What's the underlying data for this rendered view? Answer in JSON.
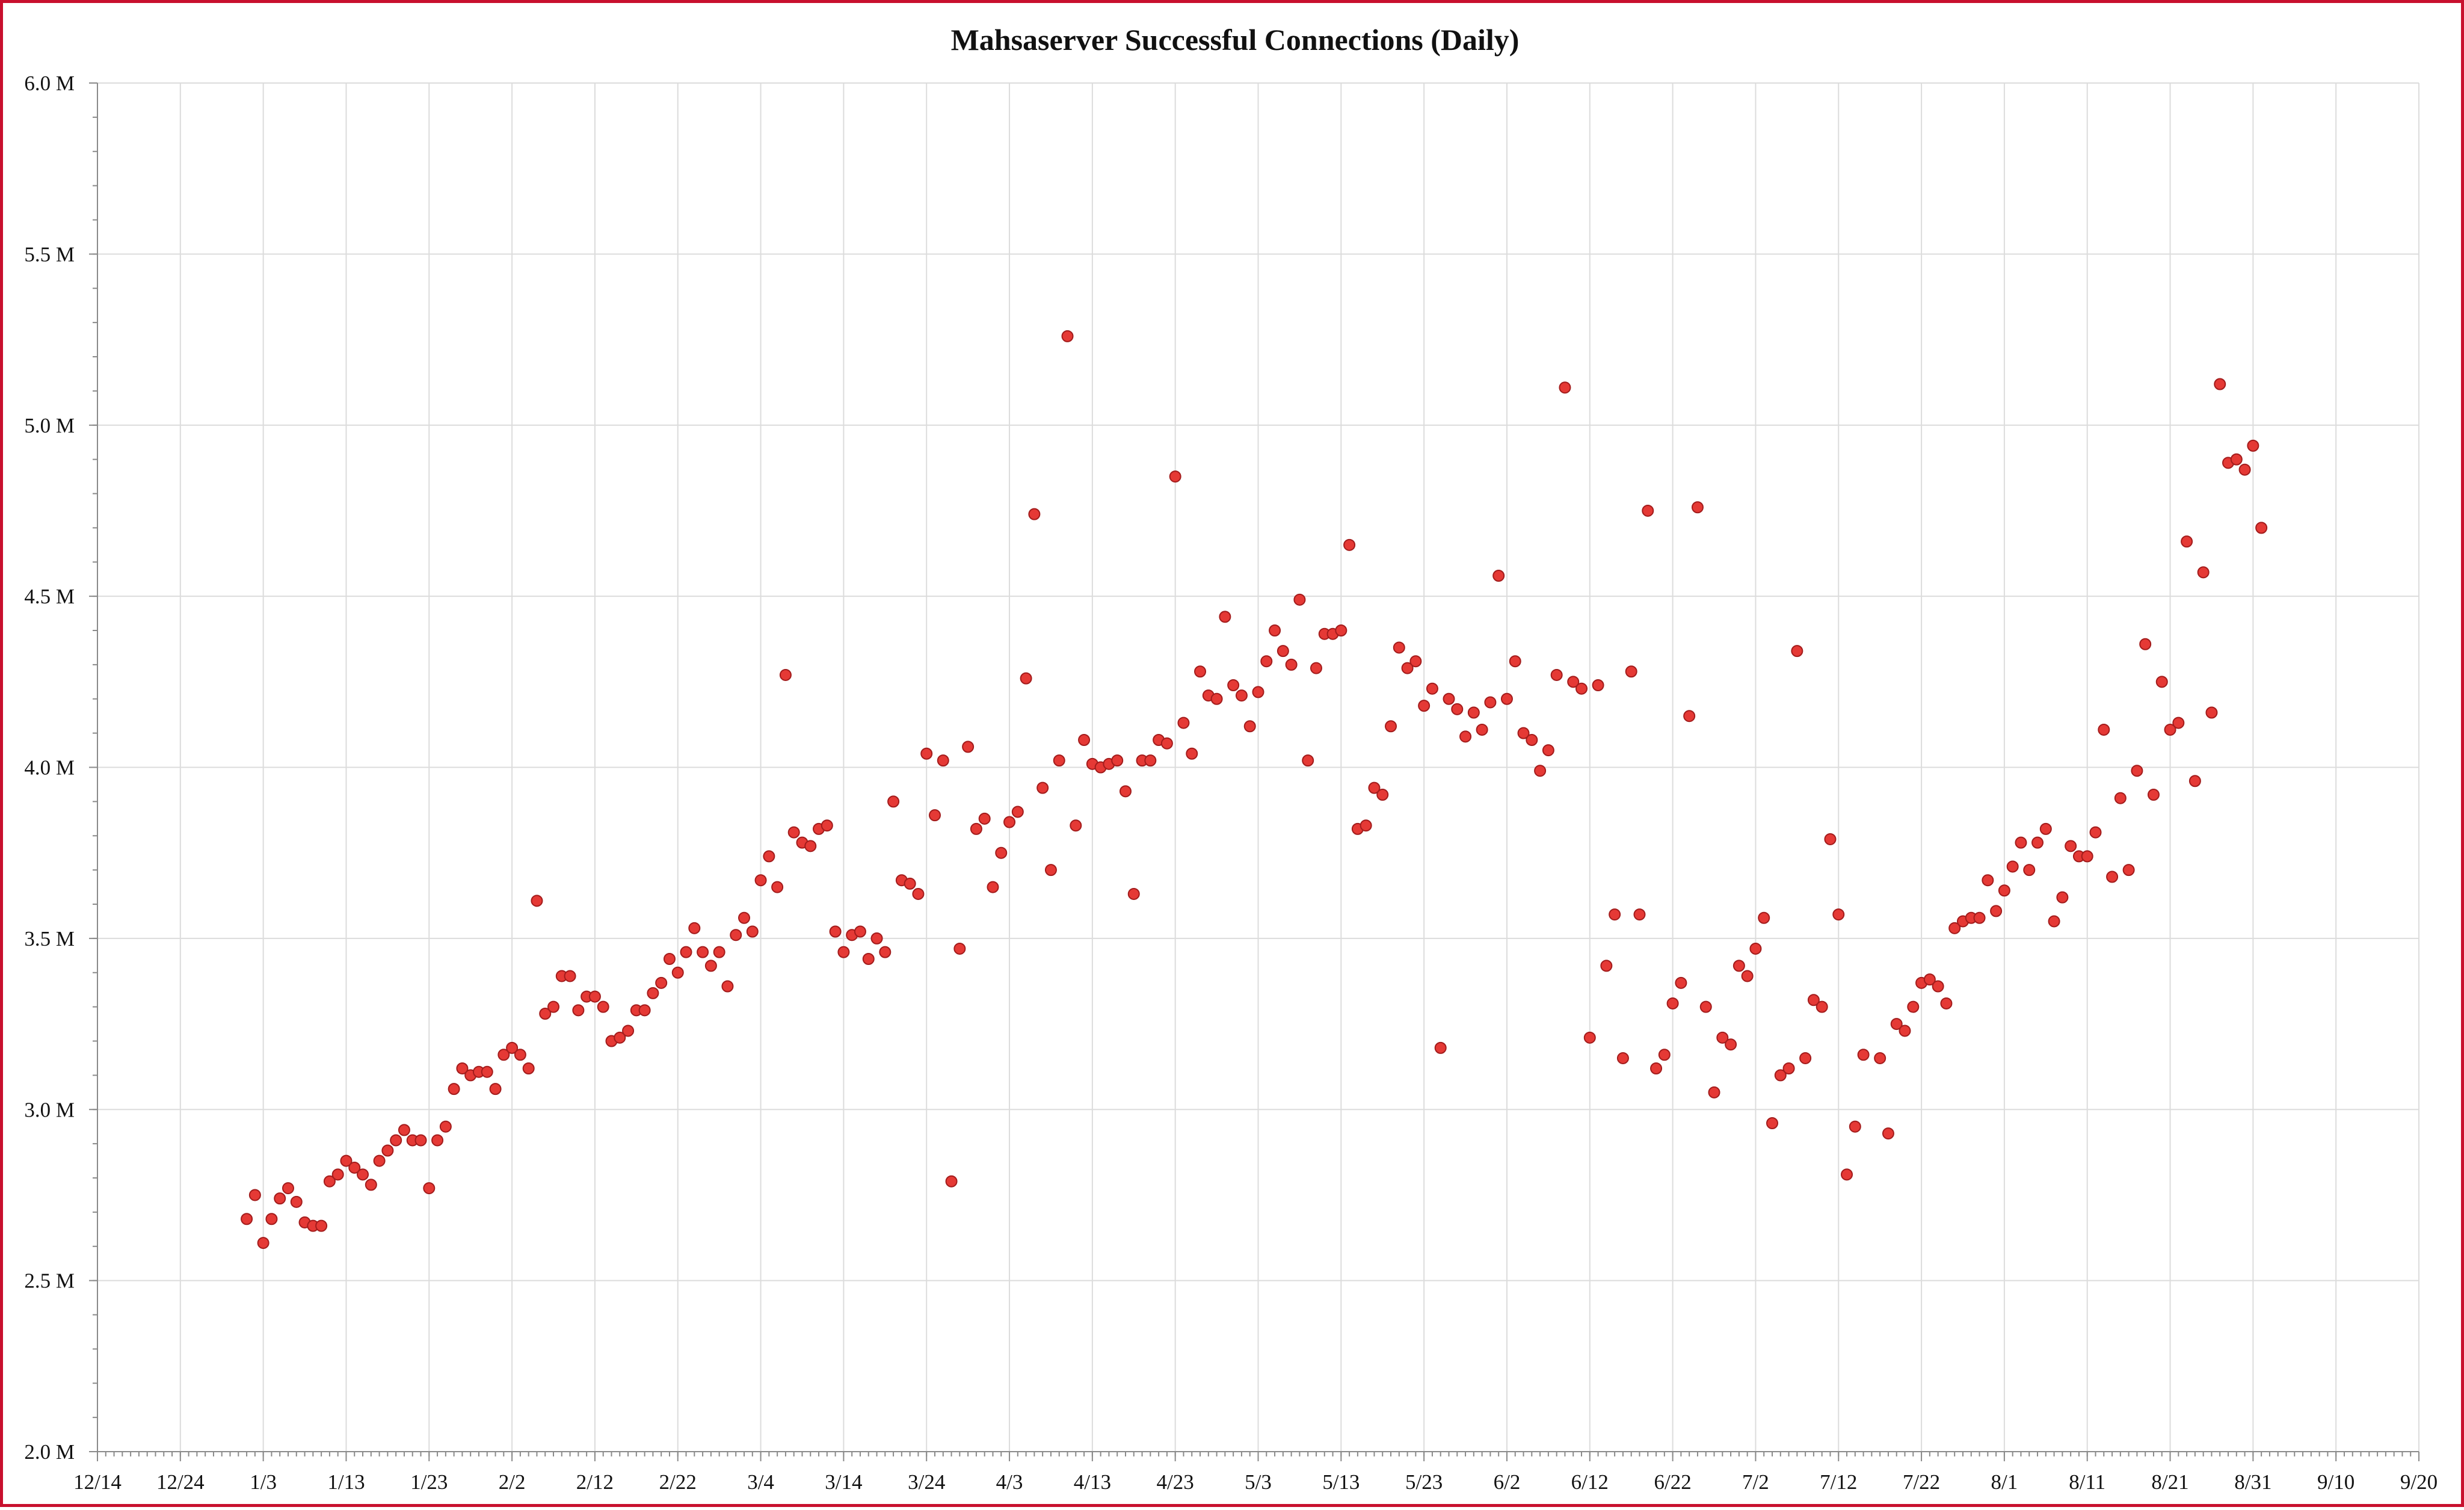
{
  "chart_data": {
    "type": "scatter",
    "title": "Mahsaserver Successful Connections (Daily)",
    "xlabel": "",
    "ylabel": "",
    "x_axis": {
      "kind": "date",
      "range": [
        "12/14",
        "9/20"
      ],
      "tick_labels": [
        "12/14",
        "12/24",
        "1/3",
        "1/13",
        "1/23",
        "2/2",
        "2/12",
        "2/22",
        "3/4",
        "3/14",
        "3/24",
        "4/3",
        "4/13",
        "4/23",
        "5/3",
        "5/13",
        "5/23",
        "6/2",
        "6/12",
        "6/22",
        "7/2",
        "7/12",
        "7/22",
        "8/1",
        "8/11",
        "8/21",
        "8/31",
        "9/10",
        "9/20"
      ]
    },
    "y_axis": {
      "range": [
        2.0,
        6.0
      ],
      "unit": "M",
      "tick_labels": [
        "2.0 M",
        "2.5 M",
        "3.0 M",
        "3.5 M",
        "4.0 M",
        "4.5 M",
        "5.0 M",
        "5.5 M",
        "6.0 M"
      ]
    },
    "grid": true,
    "legend": "none",
    "marker_color": "#e53935",
    "series": [
      {
        "values": [
          [
            "1/1",
            2.68
          ],
          [
            "1/2",
            2.75
          ],
          [
            "1/3",
            2.61
          ],
          [
            "1/4",
            2.68
          ],
          [
            "1/5",
            2.74
          ],
          [
            "1/6",
            2.77
          ],
          [
            "1/7",
            2.73
          ],
          [
            "1/8",
            2.67
          ],
          [
            "1/9",
            2.66
          ],
          [
            "1/10",
            2.66
          ],
          [
            "1/11",
            2.79
          ],
          [
            "1/12",
            2.81
          ],
          [
            "1/13",
            2.85
          ],
          [
            "1/14",
            2.83
          ],
          [
            "1/15",
            2.81
          ],
          [
            "1/16",
            2.78
          ],
          [
            "1/17",
            2.85
          ],
          [
            "1/18",
            2.88
          ],
          [
            "1/19",
            2.91
          ],
          [
            "1/20",
            2.94
          ],
          [
            "1/21",
            2.91
          ],
          [
            "1/22",
            2.91
          ],
          [
            "1/23",
            2.77
          ],
          [
            "1/24",
            2.91
          ],
          [
            "1/25",
            2.95
          ],
          [
            "1/26",
            3.06
          ],
          [
            "1/27",
            3.12
          ],
          [
            "1/28",
            3.1
          ],
          [
            "1/29",
            3.11
          ],
          [
            "1/30",
            3.11
          ],
          [
            "1/31",
            3.06
          ],
          [
            "2/1",
            3.16
          ],
          [
            "2/2",
            3.18
          ],
          [
            "2/3",
            3.16
          ],
          [
            "2/4",
            3.12
          ],
          [
            "2/5",
            3.61
          ],
          [
            "2/6",
            3.28
          ],
          [
            "2/7",
            3.3
          ],
          [
            "2/8",
            3.39
          ],
          [
            "2/9",
            3.39
          ],
          [
            "2/10",
            3.29
          ],
          [
            "2/11",
            3.33
          ],
          [
            "2/12",
            3.33
          ],
          [
            "2/13",
            3.3
          ],
          [
            "2/14",
            3.2
          ],
          [
            "2/15",
            3.21
          ],
          [
            "2/16",
            3.23
          ],
          [
            "2/17",
            3.29
          ],
          [
            "2/18",
            3.29
          ],
          [
            "2/19",
            3.34
          ],
          [
            "2/20",
            3.37
          ],
          [
            "2/21",
            3.44
          ],
          [
            "2/22",
            3.4
          ],
          [
            "2/23",
            3.46
          ],
          [
            "2/24",
            3.53
          ],
          [
            "2/25",
            3.46
          ],
          [
            "2/26",
            3.42
          ],
          [
            "2/27",
            3.46
          ],
          [
            "2/28",
            3.36
          ],
          [
            "3/1",
            3.51
          ],
          [
            "3/2",
            3.56
          ],
          [
            "3/3",
            3.52
          ],
          [
            "3/4",
            3.67
          ],
          [
            "3/5",
            3.74
          ],
          [
            "3/6",
            3.65
          ],
          [
            "3/7",
            4.27
          ],
          [
            "3/8",
            3.81
          ],
          [
            "3/9",
            3.78
          ],
          [
            "3/10",
            3.77
          ],
          [
            "3/11",
            3.82
          ],
          [
            "3/12",
            3.83
          ],
          [
            "3/13",
            3.52
          ],
          [
            "3/14",
            3.46
          ],
          [
            "3/15",
            3.51
          ],
          [
            "3/16",
            3.52
          ],
          [
            "3/17",
            3.44
          ],
          [
            "3/18",
            3.5
          ],
          [
            "3/19",
            3.46
          ],
          [
            "3/20",
            3.9
          ],
          [
            "3/21",
            3.67
          ],
          [
            "3/22",
            3.66
          ],
          [
            "3/23",
            3.63
          ],
          [
            "3/24",
            4.04
          ],
          [
            "3/25",
            3.86
          ],
          [
            "3/26",
            4.02
          ],
          [
            "3/27",
            2.79
          ],
          [
            "3/28",
            3.47
          ],
          [
            "3/29",
            4.06
          ],
          [
            "3/30",
            3.82
          ],
          [
            "3/31",
            3.85
          ],
          [
            "4/1",
            3.65
          ],
          [
            "4/2",
            3.75
          ],
          [
            "4/3",
            3.84
          ],
          [
            "4/4",
            3.87
          ],
          [
            "4/5",
            4.26
          ],
          [
            "4/6",
            4.74
          ],
          [
            "4/7",
            3.94
          ],
          [
            "4/8",
            3.7
          ],
          [
            "4/9",
            4.02
          ],
          [
            "4/10",
            5.26
          ],
          [
            "4/11",
            3.83
          ],
          [
            "4/12",
            4.08
          ],
          [
            "4/13",
            4.01
          ],
          [
            "4/14",
            4.0
          ],
          [
            "4/15",
            4.01
          ],
          [
            "4/16",
            4.02
          ],
          [
            "4/17",
            3.93
          ],
          [
            "4/18",
            3.63
          ],
          [
            "4/19",
            4.02
          ],
          [
            "4/20",
            4.02
          ],
          [
            "4/21",
            4.08
          ],
          [
            "4/22",
            4.07
          ],
          [
            "4/23",
            4.85
          ],
          [
            "4/24",
            4.13
          ],
          [
            "4/25",
            4.04
          ],
          [
            "4/26",
            4.28
          ],
          [
            "4/27",
            4.21
          ],
          [
            "4/28",
            4.2
          ],
          [
            "4/29",
            4.44
          ],
          [
            "4/30",
            4.24
          ],
          [
            "5/1",
            4.21
          ],
          [
            "5/2",
            4.12
          ],
          [
            "5/3",
            4.22
          ],
          [
            "5/4",
            4.31
          ],
          [
            "5/5",
            4.4
          ],
          [
            "5/6",
            4.34
          ],
          [
            "5/7",
            4.3
          ],
          [
            "5/8",
            4.49
          ],
          [
            "5/9",
            4.02
          ],
          [
            "5/10",
            4.29
          ],
          [
            "5/11",
            4.39
          ],
          [
            "5/12",
            4.39
          ],
          [
            "5/13",
            4.4
          ],
          [
            "5/14",
            4.65
          ],
          [
            "5/15",
            3.82
          ],
          [
            "5/16",
            3.83
          ],
          [
            "5/17",
            3.94
          ],
          [
            "5/18",
            3.92
          ],
          [
            "5/19",
            4.12
          ],
          [
            "5/20",
            4.35
          ],
          [
            "5/21",
            4.29
          ],
          [
            "5/22",
            4.31
          ],
          [
            "5/23",
            4.18
          ],
          [
            "5/24",
            4.23
          ],
          [
            "5/25",
            3.18
          ],
          [
            "5/26",
            4.2
          ],
          [
            "5/27",
            4.17
          ],
          [
            "5/28",
            4.09
          ],
          [
            "5/29",
            4.16
          ],
          [
            "5/30",
            4.11
          ],
          [
            "5/31",
            4.19
          ],
          [
            "6/1",
            4.56
          ],
          [
            "6/2",
            4.2
          ],
          [
            "6/3",
            4.31
          ],
          [
            "6/4",
            4.1
          ],
          [
            "6/5",
            4.08
          ],
          [
            "6/6",
            3.99
          ],
          [
            "6/7",
            4.05
          ],
          [
            "6/8",
            4.27
          ],
          [
            "6/9",
            5.11
          ],
          [
            "6/10",
            4.25
          ],
          [
            "6/11",
            4.23
          ],
          [
            "6/12",
            3.21
          ],
          [
            "6/13",
            4.24
          ],
          [
            "6/14",
            3.42
          ],
          [
            "6/15",
            3.57
          ],
          [
            "6/16",
            3.15
          ],
          [
            "6/17",
            4.28
          ],
          [
            "6/18",
            3.57
          ],
          [
            "6/19",
            4.75
          ],
          [
            "6/20",
            3.12
          ],
          [
            "6/21",
            3.16
          ],
          [
            "6/22",
            3.31
          ],
          [
            "6/23",
            3.37
          ],
          [
            "6/24",
            4.15
          ],
          [
            "6/25",
            4.76
          ],
          [
            "6/26",
            3.3
          ],
          [
            "6/27",
            3.05
          ],
          [
            "6/28",
            3.21
          ],
          [
            "6/29",
            3.19
          ],
          [
            "6/30",
            3.42
          ],
          [
            "7/1",
            3.39
          ],
          [
            "7/2",
            3.47
          ],
          [
            "7/3",
            3.56
          ],
          [
            "7/4",
            2.96
          ],
          [
            "7/5",
            3.1
          ],
          [
            "7/6",
            3.12
          ],
          [
            "7/7",
            4.34
          ],
          [
            "7/8",
            3.15
          ],
          [
            "7/9",
            3.32
          ],
          [
            "7/10",
            3.3
          ],
          [
            "7/11",
            3.79
          ],
          [
            "7/12",
            3.57
          ],
          [
            "7/13",
            2.81
          ],
          [
            "7/14",
            2.95
          ],
          [
            "7/15",
            3.16
          ],
          [
            "7/17",
            3.15
          ],
          [
            "7/18",
            2.93
          ],
          [
            "7/19",
            3.25
          ],
          [
            "7/20",
            3.23
          ],
          [
            "7/21",
            3.3
          ],
          [
            "7/22",
            3.37
          ],
          [
            "7/23",
            3.38
          ],
          [
            "7/24",
            3.36
          ],
          [
            "7/25",
            3.31
          ],
          [
            "7/26",
            3.53
          ],
          [
            "7/27",
            3.55
          ],
          [
            "7/28",
            3.56
          ],
          [
            "7/29",
            3.56
          ],
          [
            "7/30",
            3.67
          ],
          [
            "7/31",
            3.58
          ],
          [
            "8/1",
            3.64
          ],
          [
            "8/2",
            3.71
          ],
          [
            "8/3",
            3.78
          ],
          [
            "8/4",
            3.7
          ],
          [
            "8/5",
            3.78
          ],
          [
            "8/6",
            3.82
          ],
          [
            "8/7",
            3.55
          ],
          [
            "8/8",
            3.62
          ],
          [
            "8/9",
            3.77
          ],
          [
            "8/10",
            3.74
          ],
          [
            "8/11",
            3.74
          ],
          [
            "8/12",
            3.81
          ],
          [
            "8/13",
            4.11
          ],
          [
            "8/14",
            3.68
          ],
          [
            "8/15",
            3.91
          ],
          [
            "8/16",
            3.7
          ],
          [
            "8/17",
            3.99
          ],
          [
            "8/18",
            4.36
          ],
          [
            "8/19",
            3.92
          ],
          [
            "8/20",
            4.25
          ],
          [
            "8/21",
            4.11
          ],
          [
            "8/22",
            4.13
          ],
          [
            "8/23",
            4.66
          ],
          [
            "8/24",
            3.96
          ],
          [
            "8/25",
            4.57
          ],
          [
            "8/26",
            4.16
          ],
          [
            "8/27",
            5.12
          ],
          [
            "8/28",
            4.89
          ],
          [
            "8/29",
            4.9
          ],
          [
            "8/30",
            4.87
          ],
          [
            "8/31",
            4.94
          ],
          [
            "9/1",
            4.7
          ]
        ]
      }
    ]
  }
}
